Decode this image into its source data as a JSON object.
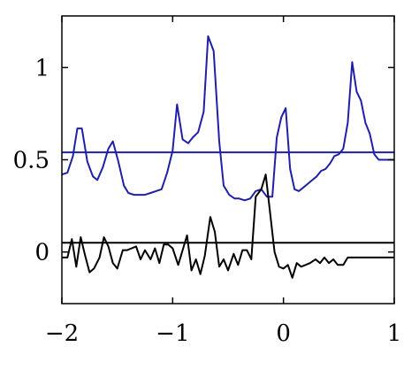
{
  "chart_data": {
    "type": "line",
    "title": "",
    "xlabel": "",
    "ylabel": "",
    "xlim": [
      -2,
      1
    ],
    "ylim": [
      -0.28,
      1.28
    ],
    "grid": false,
    "legend": "none",
    "x_ticks": [
      -2,
      -1,
      0,
      1
    ],
    "x_tick_labels": [
      "−2",
      "−1",
      "0",
      "1"
    ],
    "y_ticks": [
      0,
      0.5,
      1
    ],
    "y_tick_labels": [
      "0",
      "0.5",
      "1"
    ],
    "hlines": [
      {
        "y": 0.54,
        "color": "#1f1fa8"
      },
      {
        "y": 0.05,
        "color": "#000000"
      }
    ],
    "series": [
      {
        "color": "#1f1fa8",
        "x": [
          -2.0,
          -1.95,
          -1.9,
          -1.86,
          -1.82,
          -1.77,
          -1.72,
          -1.68,
          -1.63,
          -1.58,
          -1.54,
          -1.49,
          -1.44,
          -1.4,
          -1.35,
          -1.3,
          -1.25,
          -1.2,
          -1.15,
          -1.1,
          -1.05,
          -1.0,
          -0.96,
          -0.91,
          -0.86,
          -0.82,
          -0.77,
          -0.72,
          -0.68,
          -0.63,
          -0.58,
          -0.54,
          -0.49,
          -0.44,
          -0.4,
          -0.35,
          -0.3,
          -0.25,
          -0.2,
          -0.15,
          -0.1,
          -0.06,
          -0.02,
          0.02,
          0.06,
          0.1,
          0.14,
          0.18,
          0.22,
          0.26,
          0.3,
          0.34,
          0.38,
          0.42,
          0.46,
          0.5,
          0.54,
          0.58,
          0.62,
          0.66,
          0.7,
          0.74,
          0.78,
          0.82,
          0.86,
          0.9,
          0.94,
          0.98,
          1.0
        ],
        "y": [
          0.42,
          0.43,
          0.52,
          0.67,
          0.67,
          0.49,
          0.41,
          0.39,
          0.46,
          0.56,
          0.6,
          0.49,
          0.36,
          0.32,
          0.31,
          0.31,
          0.31,
          0.32,
          0.33,
          0.34,
          0.43,
          0.55,
          0.8,
          0.61,
          0.59,
          0.62,
          0.65,
          0.76,
          1.17,
          1.09,
          0.6,
          0.36,
          0.31,
          0.29,
          0.29,
          0.28,
          0.29,
          0.33,
          0.34,
          0.3,
          0.3,
          0.62,
          0.73,
          0.78,
          0.45,
          0.34,
          0.33,
          0.35,
          0.37,
          0.39,
          0.41,
          0.44,
          0.45,
          0.48,
          0.52,
          0.53,
          0.56,
          0.7,
          1.03,
          0.87,
          0.82,
          0.7,
          0.64,
          0.53,
          0.5,
          0.5,
          0.5,
          0.5,
          0.5
        ]
      },
      {
        "color": "#000000",
        "x": [
          -2.0,
          -1.95,
          -1.91,
          -1.87,
          -1.83,
          -1.79,
          -1.75,
          -1.71,
          -1.66,
          -1.62,
          -1.58,
          -1.54,
          -1.5,
          -1.45,
          -1.41,
          -1.37,
          -1.33,
          -1.29,
          -1.25,
          -1.2,
          -1.16,
          -1.12,
          -1.08,
          -1.04,
          -1.0,
          -0.95,
          -0.91,
          -0.87,
          -0.83,
          -0.79,
          -0.75,
          -0.71,
          -0.66,
          -0.62,
          -0.58,
          -0.54,
          -0.5,
          -0.45,
          -0.41,
          -0.37,
          -0.33,
          -0.29,
          -0.25,
          -0.2,
          -0.16,
          -0.12,
          -0.08,
          -0.04,
          0.0,
          0.04,
          0.08,
          0.12,
          0.16,
          0.2,
          0.24,
          0.29,
          0.33,
          0.37,
          0.41,
          0.45,
          0.49,
          0.54,
          0.58,
          0.62,
          0.66,
          0.7,
          0.74,
          0.79,
          0.83,
          0.87,
          0.91,
          0.95,
          1.0
        ],
        "y": [
          -0.03,
          -0.03,
          0.07,
          -0.08,
          0.08,
          -0.02,
          -0.11,
          -0.09,
          -0.03,
          0.08,
          0.03,
          -0.06,
          -0.09,
          0.01,
          0.01,
          0.02,
          0.03,
          -0.04,
          0.01,
          -0.04,
          0.02,
          -0.06,
          0.04,
          0.04,
          0.02,
          -0.07,
          0.01,
          0.09,
          -0.1,
          -0.04,
          -0.12,
          -0.02,
          0.19,
          0.11,
          -0.08,
          -0.04,
          -0.1,
          -0.01,
          -0.07,
          0.01,
          0.01,
          -0.04,
          0.3,
          0.34,
          0.42,
          0.21,
          0.0,
          -0.08,
          -0.09,
          -0.07,
          -0.14,
          -0.06,
          -0.08,
          -0.07,
          -0.06,
          -0.04,
          -0.06,
          -0.03,
          -0.06,
          -0.04,
          -0.07,
          -0.07,
          -0.03,
          -0.03,
          -0.03,
          -0.03,
          -0.03,
          -0.03,
          -0.03,
          -0.03,
          -0.03,
          -0.03,
          -0.03
        ]
      }
    ]
  }
}
